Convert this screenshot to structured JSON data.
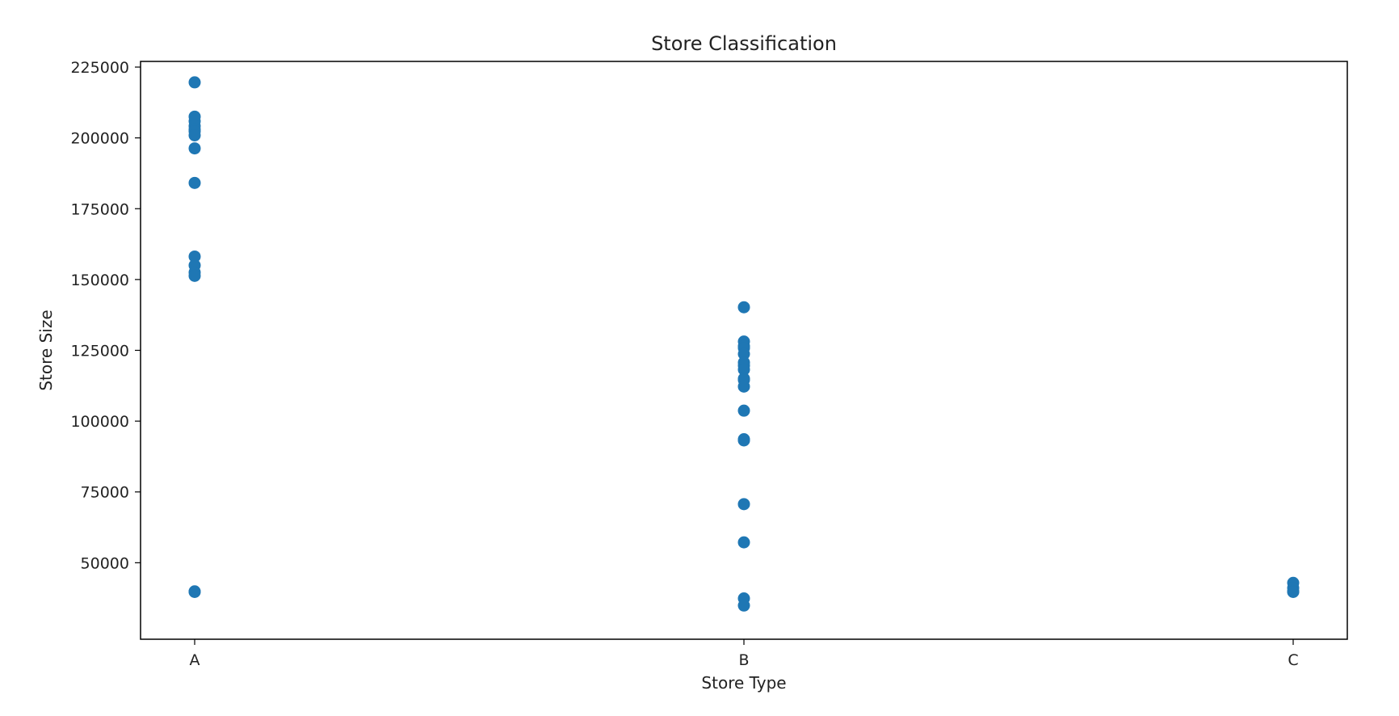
{
  "chart_data": {
    "type": "scatter",
    "title": "Store Classification",
    "xlabel": "Store Type",
    "ylabel": "Store Size",
    "categories": [
      "A",
      "B",
      "C"
    ],
    "ylim": [
      23000,
      227000
    ],
    "yticks": [
      50000,
      75000,
      100000,
      125000,
      150000,
      175000,
      200000,
      225000
    ],
    "ytick_labels": [
      "50000",
      "75000",
      "100000",
      "125000",
      "150000",
      "175000",
      "200000",
      "225000"
    ],
    "grid": false,
    "legend": "none",
    "series": [
      {
        "color": "#1f77b4",
        "points": [
          {
            "x": "A",
            "y": 219600
          },
          {
            "x": "A",
            "y": 207500
          },
          {
            "x": "A",
            "y": 205900
          },
          {
            "x": "A",
            "y": 204200
          },
          {
            "x": "A",
            "y": 203000
          },
          {
            "x": "A",
            "y": 202300
          },
          {
            "x": "A",
            "y": 200900
          },
          {
            "x": "A",
            "y": 196300
          },
          {
            "x": "A",
            "y": 184100
          },
          {
            "x": "A",
            "y": 158100
          },
          {
            "x": "A",
            "y": 155000
          },
          {
            "x": "A",
            "y": 152500
          },
          {
            "x": "A",
            "y": 151300
          },
          {
            "x": "A",
            "y": 39700
          },
          {
            "x": "A",
            "y": 39900
          },
          {
            "x": "B",
            "y": 140200
          },
          {
            "x": "B",
            "y": 128100
          },
          {
            "x": "B",
            "y": 126500
          },
          {
            "x": "B",
            "y": 125800
          },
          {
            "x": "B",
            "y": 123700
          },
          {
            "x": "B",
            "y": 120700
          },
          {
            "x": "B",
            "y": 119600
          },
          {
            "x": "B",
            "y": 118200
          },
          {
            "x": "B",
            "y": 115000
          },
          {
            "x": "B",
            "y": 114500
          },
          {
            "x": "B",
            "y": 112200
          },
          {
            "x": "B",
            "y": 103700
          },
          {
            "x": "B",
            "y": 93600
          },
          {
            "x": "B",
            "y": 93200
          },
          {
            "x": "B",
            "y": 70700
          },
          {
            "x": "B",
            "y": 57200
          },
          {
            "x": "B",
            "y": 37400
          },
          {
            "x": "B",
            "y": 34900
          },
          {
            "x": "C",
            "y": 42900
          },
          {
            "x": "C",
            "y": 41100
          },
          {
            "x": "C",
            "y": 39900
          },
          {
            "x": "C",
            "y": 39700
          }
        ]
      }
    ]
  }
}
